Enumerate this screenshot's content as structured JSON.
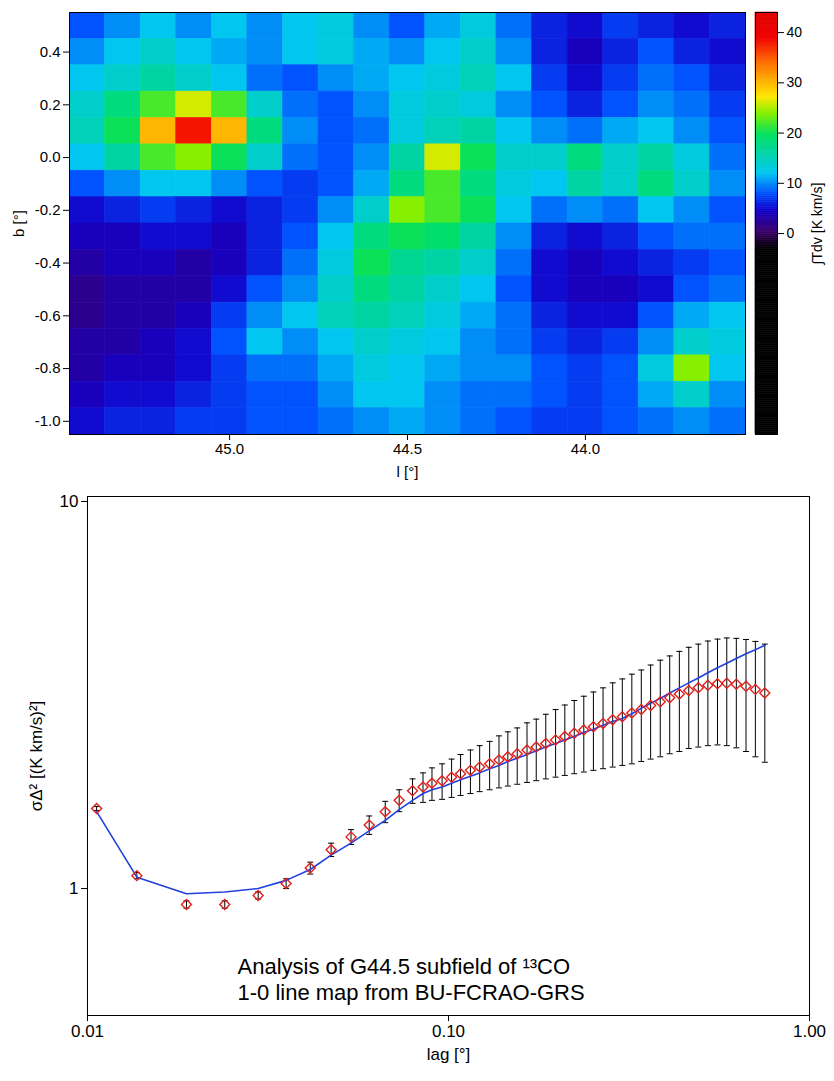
{
  "chart_data": [
    {
      "type": "heatmap",
      "x_label": "l [°]",
      "y_label": "b [°]",
      "xlim": [
        45.45,
        43.55
      ],
      "ylim": [
        -1.05,
        0.55
      ],
      "xticks": [
        {
          "value": 45,
          "label": "45.0"
        },
        44.5,
        {
          "value": 44,
          "label": "44.0"
        }
      ],
      "yticks": [
        {
          "value": -1,
          "label": "-1.0"
        },
        -0.8,
        -0.6,
        -0.4,
        -0.2,
        {
          "value": 0,
          "label": "0.0"
        },
        0.2,
        0.4
      ],
      "x": [
        45.4,
        45.3,
        45.2,
        45.1,
        45.0,
        44.9,
        44.8,
        44.7,
        44.6,
        44.5,
        44.4,
        44.3,
        44.2,
        44.1,
        44.0,
        43.9,
        43.8,
        43.7,
        43.6
      ],
      "y": [
        0.5,
        0.4,
        0.3,
        0.2,
        0.1,
        0.0,
        -0.1,
        -0.2,
        -0.3,
        -0.4,
        -0.5,
        -0.6,
        -0.7,
        -0.8,
        -0.9,
        -1.0
      ],
      "values": [
        [
          8,
          10,
          12,
          10,
          12,
          10,
          12,
          13,
          10,
          8,
          11,
          13,
          9,
          6,
          5,
          7,
          6,
          5,
          6
        ],
        [
          10,
          12,
          14,
          12,
          11,
          10,
          12,
          13,
          11,
          10,
          12,
          14,
          10,
          6,
          4,
          6,
          8,
          6,
          5
        ],
        [
          12,
          14,
          16,
          14,
          12,
          9,
          8,
          10,
          11,
          12,
          13,
          15,
          12,
          7,
          5,
          7,
          9,
          8,
          6
        ],
        [
          14,
          18,
          22,
          26,
          22,
          14,
          9,
          8,
          10,
          13,
          14,
          13,
          10,
          8,
          6,
          8,
          10,
          9,
          7
        ],
        [
          15,
          20,
          30,
          38,
          30,
          18,
          10,
          8,
          9,
          13,
          15,
          16,
          12,
          10,
          9,
          11,
          12,
          10,
          8
        ],
        [
          12,
          16,
          22,
          24,
          20,
          14,
          9,
          8,
          10,
          16,
          26,
          20,
          14,
          14,
          18,
          14,
          16,
          13,
          9
        ],
        [
          8,
          10,
          12,
          12,
          10,
          8,
          7,
          8,
          11,
          18,
          22,
          18,
          13,
          12,
          16,
          14,
          18,
          14,
          10
        ],
        [
          5,
          6,
          7,
          6,
          5,
          6,
          7,
          10,
          14,
          24,
          22,
          20,
          12,
          9,
          10,
          9,
          12,
          10,
          8
        ],
        [
          4,
          4,
          5,
          5,
          4,
          6,
          8,
          12,
          18,
          20,
          19,
          16,
          10,
          6,
          5,
          6,
          8,
          9,
          9
        ],
        [
          3,
          4,
          4,
          3,
          4,
          6,
          9,
          13,
          20,
          17,
          16,
          14,
          9,
          5,
          4,
          5,
          6,
          7,
          8
        ],
        [
          2,
          3,
          3,
          3,
          5,
          8,
          10,
          14,
          18,
          16,
          14,
          12,
          8,
          5,
          4,
          4,
          5,
          8,
          9
        ],
        [
          2,
          3,
          3,
          4,
          7,
          10,
          12,
          15,
          16,
          15,
          13,
          11,
          9,
          6,
          5,
          5,
          8,
          11,
          12
        ],
        [
          3,
          3,
          4,
          5,
          8,
          12,
          10,
          12,
          14,
          13,
          12,
          10,
          9,
          7,
          6,
          7,
          10,
          14,
          13
        ],
        [
          3,
          4,
          4,
          5,
          7,
          9,
          9,
          11,
          13,
          12,
          11,
          10,
          10,
          8,
          7,
          8,
          13,
          24,
          12
        ],
        [
          4,
          5,
          5,
          6,
          7,
          8,
          8,
          10,
          12,
          12,
          10,
          9,
          9,
          8,
          7,
          8,
          11,
          14,
          10
        ],
        [
          5,
          6,
          6,
          7,
          7,
          8,
          8,
          9,
          10,
          11,
          10,
          9,
          8,
          7,
          7,
          8,
          9,
          10,
          9
        ]
      ],
      "colorbar_label": "∫Tdv [K km/s]",
      "colorbar_range": [
        -40,
        44
      ],
      "colorbar_ticks": [
        0,
        10,
        20,
        30,
        40
      ]
    },
    {
      "type": "line",
      "log": true,
      "x_label": "lag [°]",
      "y_label": "σΔ² [(K km/s)²]",
      "annotation": [
        "Analysis of G44.5 subfield of ¹³CO",
        "1-0 line map from BU-FCRAO-GRS"
      ],
      "xlim": [
        0.01,
        1
      ],
      "ylim": [
        0.47,
        10.3
      ],
      "xticks": [
        0.01,
        {
          "value": 0.1,
          "label": "0.10"
        },
        {
          "value": 1,
          "label": "1.00"
        }
      ],
      "yticks": [
        1,
        10
      ],
      "x": [
        0.0106,
        0.0137,
        0.0188,
        0.024,
        0.0297,
        0.0355,
        0.0414,
        0.0473,
        0.0537,
        0.0603,
        0.0668,
        0.073,
        0.0795,
        0.085,
        0.09,
        0.096,
        0.102,
        0.108,
        0.115,
        0.122,
        0.13,
        0.138,
        0.146,
        0.155,
        0.165,
        0.175,
        0.186,
        0.198,
        0.21,
        0.223,
        0.237,
        0.252,
        0.268,
        0.285,
        0.303,
        0.322,
        0.342,
        0.363,
        0.386,
        0.41,
        0.436,
        0.463,
        0.492,
        0.523,
        0.556,
        0.59,
        0.627,
        0.667,
        0.708,
        0.752
      ],
      "series": [
        {
          "type": "scatter",
          "color": "#e0201c",
          "marker": "diamond",
          "values": [
            1.61,
            1.08,
            0.91,
            0.91,
            0.96,
            1.03,
            1.13,
            1.26,
            1.36,
            1.46,
            1.58,
            1.69,
            1.79,
            1.83,
            1.87,
            1.9,
            1.94,
            1.98,
            2.02,
            2.06,
            2.1,
            2.15,
            2.19,
            2.23,
            2.28,
            2.32,
            2.37,
            2.42,
            2.47,
            2.52,
            2.57,
            2.62,
            2.67,
            2.73,
            2.78,
            2.84,
            2.9,
            2.97,
            3.04,
            3.11,
            3.18,
            3.25,
            3.3,
            3.35,
            3.38,
            3.39,
            3.37,
            3.33,
            3.27,
            3.2
          ],
          "errors": [
            0.02,
            0.02,
            0.02,
            0.02,
            0.02,
            0.03,
            0.04,
            0.05,
            0.06,
            0.08,
            0.1,
            0.11,
            0.13,
            0.16,
            0.18,
            0.2,
            0.22,
            0.24,
            0.26,
            0.28,
            0.3,
            0.33,
            0.35,
            0.37,
            0.4,
            0.42,
            0.45,
            0.48,
            0.51,
            0.54,
            0.57,
            0.6,
            0.63,
            0.67,
            0.7,
            0.74,
            0.77,
            0.81,
            0.85,
            0.88,
            0.92,
            0.95,
            0.98,
            1.01,
            1.03,
            1.05,
            1.06,
            1.07,
            1.08,
            1.08
          ]
        },
        {
          "type": "line",
          "color": "#2040e0",
          "line_style": "solid",
          "values": [
            1.58,
            1.07,
            0.97,
            0.98,
            1.0,
            1.05,
            1.12,
            1.22,
            1.31,
            1.41,
            1.5,
            1.6,
            1.69,
            1.76,
            1.8,
            1.83,
            1.87,
            1.91,
            1.95,
            1.99,
            2.04,
            2.08,
            2.13,
            2.17,
            2.22,
            2.27,
            2.32,
            2.37,
            2.42,
            2.47,
            2.53,
            2.58,
            2.64,
            2.7,
            2.75,
            2.83,
            2.92,
            3.01,
            3.1,
            3.2,
            3.3,
            3.4,
            3.5,
            3.61,
            3.72,
            3.82,
            3.93,
            4.04,
            4.14,
            4.25
          ]
        }
      ]
    }
  ]
}
